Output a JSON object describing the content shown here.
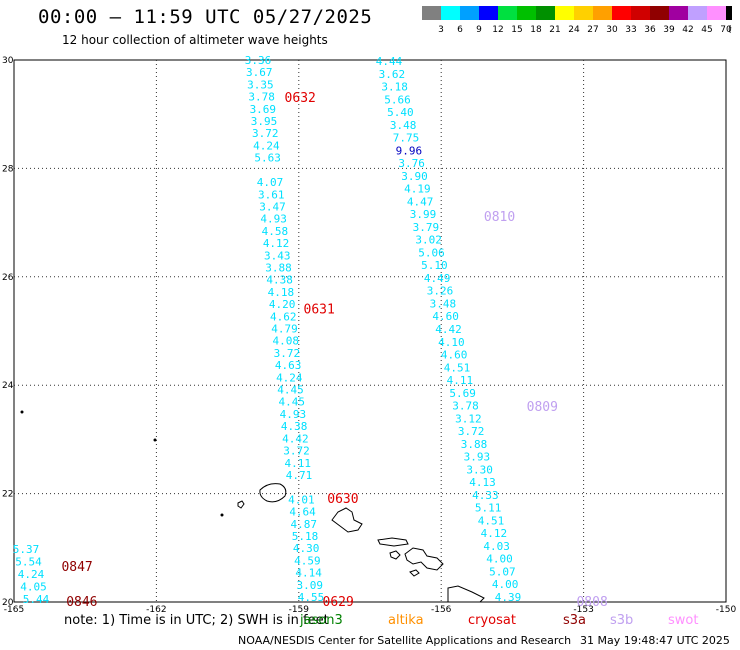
{
  "title": "00:00 – 11:59 UTC 05/27/2025",
  "subtitle": "12 hour collection of altimeter wave heights",
  "colorbar": {
    "colors": [
      "#808080",
      "#00ffff",
      "#00a0ff",
      "#0000ff",
      "#00e040",
      "#00c000",
      "#009000",
      "#ffff00",
      "#ffd000",
      "#ffa000",
      "#ff0000",
      "#d00000",
      "#900000",
      "#a000a0",
      "#c0a0ff",
      "#ff90ff",
      "#000000"
    ],
    "labels": [
      "3",
      "6",
      "9",
      "12",
      "15",
      "18",
      "21",
      "24",
      "27",
      "30",
      "33",
      "36",
      "39",
      "42",
      "45",
      "70",
      "(ft)"
    ]
  },
  "axes": {
    "lon_ticks": [
      "-165",
      "-162",
      "-159",
      "-156",
      "-153",
      "-150"
    ],
    "lat_ticks": [
      "20",
      "22",
      "24",
      "26",
      "28",
      "30"
    ]
  },
  "tracks": [
    {
      "name": "west",
      "color": "#00e0ff",
      "lat_start": 29.95,
      "lat_step": 0.21,
      "values": [
        "3.36",
        "3.67",
        "3.35",
        "3.78",
        "3.69",
        "3.95",
        "3.72",
        "4.24",
        "5.63",
        "",
        "4.07",
        "3.61",
        "3.47",
        "4.93",
        "4.58",
        "4.12",
        "3.43",
        "3.88",
        "4.38",
        "4.18",
        "4.20",
        "4.62",
        "4.79",
        "4.08",
        "3.72",
        "4.63",
        "4.24",
        "4.45",
        "4.45",
        "4.93",
        "4.38",
        "4.42",
        "3.72",
        "4.11",
        "4.71",
        "",
        "4.01",
        "4.64",
        "4.87",
        "5.18",
        "4.30",
        "4.59",
        "4.14",
        "3.09",
        "4.55"
      ]
    },
    {
      "name": "east",
      "color": "#00e0ff",
      "lat_start": 29.95,
      "lat_step": 0.2,
      "values": [
        "4.44",
        "3.62",
        "3.18",
        "5.66",
        "5.40",
        "3.48",
        "7.75",
        "9.96",
        "3.76",
        "3.90",
        "4.19",
        "4.47",
        "3.99",
        "3.79",
        "3.02",
        "5.06",
        "5.10",
        "4.49",
        "3.26",
        "3.48",
        "4.60",
        "4.42",
        "4.10",
        "4.60",
        "4.51",
        "4.11",
        "5.69",
        "3.78",
        "3.12",
        "3.72",
        "3.88",
        "3.93",
        "3.30",
        "4.13",
        "4.33",
        "5.11",
        "4.51",
        "4.12",
        "4.03",
        "4.00",
        "5.07",
        "4.00",
        "4.39"
      ],
      "highlight": {
        "index": 7,
        "color": "#0000c0"
      }
    },
    {
      "name": "southwest",
      "color": "#00e0ff",
      "values": [
        "5.37",
        "5.54",
        "4.24",
        "4.05",
        "5.44"
      ]
    }
  ],
  "pass_labels": [
    {
      "text": "0632",
      "color": "#e00000",
      "lon": -159.3,
      "lat": 29.3
    },
    {
      "text": "0631",
      "color": "#e00000",
      "lon": -158.9,
      "lat": 25.4
    },
    {
      "text": "0630",
      "color": "#e00000",
      "lon": -158.4,
      "lat": 21.9
    },
    {
      "text": "0629",
      "color": "#e00000",
      "lon": -158.5,
      "lat": 20.0
    },
    {
      "text": "0810",
      "color": "#c0a0f0",
      "lon": -155.1,
      "lat": 27.1
    },
    {
      "text": "0809",
      "color": "#c0a0f0",
      "lon": -154.2,
      "lat": 23.6
    },
    {
      "text": "0808",
      "color": "#c0a0f0",
      "lon": -153.15,
      "lat": 20.0
    },
    {
      "text": "0847",
      "color": "#900000",
      "lon": -164.0,
      "lat": 20.65
    },
    {
      "text": "0846",
      "color": "#900000",
      "lon": -163.9,
      "lat": 20.0
    }
  ],
  "legend": {
    "note": "note: 1) Time is in UTC; 2) SWH is in feet",
    "satellites": [
      {
        "name": "jason3",
        "color": "#008000"
      },
      {
        "name": "altika",
        "color": "#ff9000"
      },
      {
        "name": "cryosat",
        "color": "#e00000"
      },
      {
        "name": "s3a",
        "color": "#900000"
      },
      {
        "name": "s3b",
        "color": "#c0a0f0"
      },
      {
        "name": "swot",
        "color": "#ff90ff"
      }
    ]
  },
  "footer": {
    "source": "NOAA/NESDIS Center for Satellite Applications and Research",
    "timestamp": "31 May 19:48:47 UTC 2025"
  }
}
